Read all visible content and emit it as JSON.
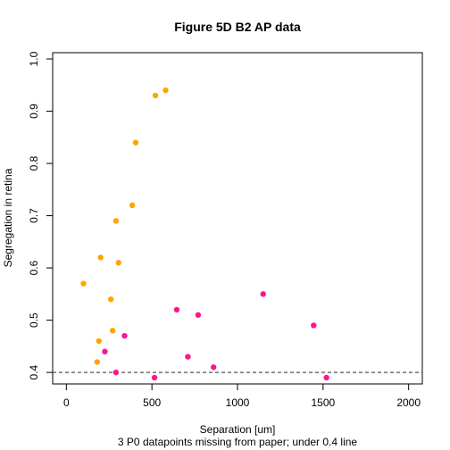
{
  "chart_data": {
    "type": "scatter",
    "title": "Figure 5D B2 AP data",
    "xlabel": "Separation [um]",
    "ylabel": "Segregation in retina",
    "subtitle": "3 P0 datapoints missing from paper; under 0.4 line",
    "xlim": [
      -80,
      2080
    ],
    "ylim": [
      0.378,
      1.012
    ],
    "xticks": [
      0,
      500,
      1000,
      1500,
      2000
    ],
    "yticks": [
      0.4,
      0.5,
      0.6,
      0.7,
      0.8,
      0.9,
      1.0
    ],
    "xtick_labels": [
      "0",
      "500",
      "1000",
      "1500",
      "2000"
    ],
    "ytick_labels": [
      "0.4",
      "0.5",
      "0.6",
      "0.7",
      "0.8",
      "0.9",
      "1.0"
    ],
    "reference_line": {
      "y": 0.4,
      "style": "dashed",
      "color": "#555555"
    },
    "grid": false,
    "series": [
      {
        "color": "#FFA500",
        "points": [
          [
            100,
            0.57
          ],
          [
            180,
            0.42
          ],
          [
            190,
            0.46
          ],
          [
            200,
            0.62
          ],
          [
            260,
            0.54
          ],
          [
            270,
            0.48
          ],
          [
            290,
            0.69
          ],
          [
            305,
            0.61
          ],
          [
            385,
            0.72
          ],
          [
            405,
            0.84
          ],
          [
            520,
            0.93
          ],
          [
            580,
            0.94
          ]
        ]
      },
      {
        "color": "#FF1493",
        "points": [
          [
            225,
            0.44
          ],
          [
            290,
            0.4
          ],
          [
            340,
            0.47
          ],
          [
            515,
            0.39
          ],
          [
            645,
            0.52
          ],
          [
            710,
            0.43
          ],
          [
            770,
            0.51
          ],
          [
            860,
            0.41
          ],
          [
            1150,
            0.55
          ],
          [
            1445,
            0.49
          ],
          [
            1520,
            0.39
          ]
        ]
      }
    ]
  }
}
